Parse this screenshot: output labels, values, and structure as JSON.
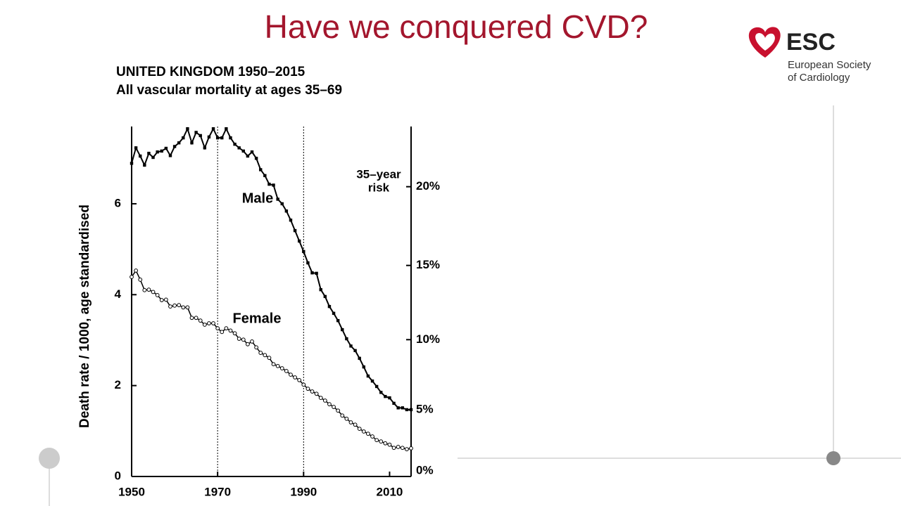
{
  "slide": {
    "title": "Have we conquered CVD?",
    "logo": {
      "name": "ESC",
      "line1": "European Society",
      "line2": "of Cardiology"
    }
  },
  "chart_data": {
    "type": "line",
    "title": "UNITED KINGDOM 1950–2015",
    "subtitle": "All vascular mortality at ages 35–69",
    "y_label": "Death rate / 1000, age standardised",
    "y2_label": [
      "35–year",
      "risk"
    ],
    "x": [
      1950,
      1951,
      1952,
      1953,
      1954,
      1955,
      1956,
      1957,
      1958,
      1959,
      1960,
      1961,
      1962,
      1963,
      1964,
      1965,
      1966,
      1967,
      1968,
      1969,
      1970,
      1971,
      1972,
      1973,
      1974,
      1975,
      1976,
      1977,
      1978,
      1979,
      1980,
      1981,
      1982,
      1983,
      1984,
      1985,
      1986,
      1987,
      1988,
      1989,
      1990,
      1991,
      1992,
      1993,
      1994,
      1995,
      1996,
      1997,
      1998,
      1999,
      2000,
      2001,
      2002,
      2003,
      2004,
      2005,
      2006,
      2007,
      2008,
      2009,
      2010,
      2011,
      2012,
      2013,
      2014,
      2015
    ],
    "series": [
      {
        "name": "Male",
        "color": "#000000",
        "marker": "square",
        "values": [
          6.89,
          7.23,
          7.05,
          6.85,
          7.11,
          7.02,
          7.14,
          7.16,
          7.22,
          7.06,
          7.26,
          7.34,
          7.45,
          7.65,
          7.34,
          7.57,
          7.5,
          7.23,
          7.47,
          7.65,
          7.45,
          7.45,
          7.65,
          7.45,
          7.31,
          7.23,
          7.16,
          7.05,
          7.14,
          7.0,
          6.75,
          6.62,
          6.43,
          6.41,
          6.1,
          6.0,
          5.84,
          5.64,
          5.41,
          5.18,
          4.95,
          4.7,
          4.48,
          4.47,
          4.11,
          3.96,
          3.74,
          3.59,
          3.43,
          3.23,
          3.03,
          2.87,
          2.77,
          2.6,
          2.41,
          2.21,
          2.1,
          1.98,
          1.85,
          1.76,
          1.73,
          1.61,
          1.51,
          1.51,
          1.47,
          1.47
        ]
      },
      {
        "name": "Female",
        "color": "#000000",
        "marker": "circle",
        "values": [
          4.39,
          4.53,
          4.33,
          4.1,
          4.11,
          4.06,
          3.99,
          3.88,
          3.89,
          3.74,
          3.76,
          3.77,
          3.72,
          3.72,
          3.49,
          3.49,
          3.43,
          3.34,
          3.37,
          3.37,
          3.26,
          3.18,
          3.26,
          3.21,
          3.15,
          3.03,
          3.01,
          2.91,
          2.97,
          2.84,
          2.72,
          2.67,
          2.61,
          2.47,
          2.43,
          2.38,
          2.32,
          2.24,
          2.18,
          2.12,
          2.02,
          1.93,
          1.87,
          1.82,
          1.73,
          1.67,
          1.59,
          1.53,
          1.45,
          1.34,
          1.27,
          1.19,
          1.14,
          1.05,
          0.99,
          0.94,
          0.88,
          0.8,
          0.77,
          0.73,
          0.7,
          0.63,
          0.65,
          0.63,
          0.6,
          0.62
        ]
      }
    ],
    "xlim": [
      1950,
      2015
    ],
    "xticks": [
      1950,
      1970,
      1990,
      2010
    ],
    "ylim": [
      0,
      7.7
    ],
    "yticks": [
      0,
      2,
      4,
      6
    ],
    "y2ticks": [
      {
        "value": 0,
        "label": "0%"
      },
      {
        "value": 5,
        "label": "5%"
      },
      {
        "value": 10,
        "label": "10%"
      },
      {
        "value": 15,
        "label": "15%"
      },
      {
        "value": 20,
        "label": "20%"
      }
    ],
    "vlines": [
      1970,
      1990
    ]
  }
}
